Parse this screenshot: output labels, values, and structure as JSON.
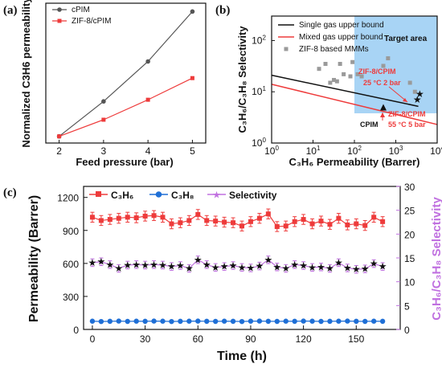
{
  "colors": {
    "cpim": "#555555",
    "zif": "#ee3b3b",
    "c3h6": "#ee3b3b",
    "c3h8": "#1f6fd6",
    "selectivity": "#c070e0",
    "target_area": "#a8d4f5",
    "mmm": "#9a9a9a",
    "single_bound": "#111111",
    "mixed_bound": "#ee3b3b"
  },
  "chart_data": [
    {
      "panel": "(a)",
      "type": "line",
      "xlabel": "Feed pressure (bar)",
      "ylabel": "Normalized C3H6 permeability",
      "xlim": [
        1.7,
        5.3
      ],
      "ylim": [
        0.8,
        5.0
      ],
      "xticks": [
        "2",
        "3",
        "4",
        "5"
      ],
      "x": [
        2,
        3,
        4,
        5
      ],
      "series": [
        {
          "name": "cPIM",
          "values": [
            1.0,
            2.05,
            3.25,
            4.75
          ]
        },
        {
          "name": "ZIF-8/cPIM",
          "values": [
            1.0,
            1.5,
            2.1,
            2.75
          ]
        }
      ],
      "legend_position": "top-left"
    },
    {
      "panel": "(b)",
      "type": "scatter",
      "xlabel": "C3H6 Permeability (Barrer)",
      "ylabel": "C3H6/C3H8 Selectivity",
      "xscale": "log",
      "yscale": "log",
      "xlim": [
        1,
        10000
      ],
      "ylim": [
        1,
        300
      ],
      "xticks": [
        "10^0",
        "10^1",
        "10^2",
        "10^3",
        "10^4"
      ],
      "yticks": [
        "10^0",
        "10^1",
        "10^2"
      ],
      "target_area_label": "Target area",
      "target_area_xmin": 100,
      "series": [
        {
          "name": "Single gas upper bound",
          "points": [
            [
              1,
              21
            ],
            [
              3500,
              5.2
            ]
          ]
        },
        {
          "name": "Mixed gas upper bound",
          "points": [
            [
              1,
              14
            ],
            [
              10000,
              2.3
            ]
          ]
        },
        {
          "name": "ZIF-8 based MMMs",
          "points": [
            [
              14,
              28
            ],
            [
              20,
              35
            ],
            [
              26,
              15
            ],
            [
              32,
              17
            ],
            [
              38,
              16
            ],
            [
              45,
              35
            ],
            [
              55,
              22
            ],
            [
              80,
              20
            ],
            [
              90,
              38
            ],
            [
              120,
              22
            ],
            [
              150,
              20
            ],
            [
              500,
              32
            ],
            [
              650,
              45
            ],
            [
              2200,
              15
            ],
            [
              2900,
              10
            ]
          ]
        }
      ],
      "annotations": [
        {
          "text": "CPIM",
          "point": [
            500,
            4.8
          ]
        },
        {
          "text": "ZIF-8/CPIM 25 °C 2 bar",
          "point": [
            3300,
            7
          ]
        },
        {
          "text": "ZIF-8/CPIM 55 °C 5 bar",
          "point": [
            3800,
            9
          ]
        }
      ],
      "legend_position": "top-left"
    },
    {
      "panel": "(c)",
      "type": "line",
      "xlabel": "Time (h)",
      "ylabel": "Permeability (Barrer)",
      "y2label": "C3H6/C3H8 Selectivity",
      "xlim": [
        -5,
        175
      ],
      "ylim": [
        0,
        1300
      ],
      "y2lim": [
        0,
        30
      ],
      "xticks": [
        0,
        30,
        60,
        90,
        120,
        150
      ],
      "yticks": [
        0,
        300,
        600,
        900,
        1200
      ],
      "y2ticks": [
        0,
        5,
        10,
        15,
        20,
        25,
        30
      ],
      "x": [
        0,
        5,
        10,
        15,
        20,
        25,
        30,
        35,
        40,
        45,
        50,
        55,
        60,
        65,
        70,
        75,
        80,
        85,
        90,
        95,
        100,
        105,
        110,
        115,
        120,
        125,
        130,
        135,
        140,
        145,
        150,
        155,
        160,
        165
      ],
      "series": [
        {
          "name": "C3H6",
          "axis": "left",
          "values": [
            1020,
            990,
            1000,
            1010,
            1020,
            1015,
            1030,
            1035,
            1020,
            960,
            970,
            990,
            1045,
            990,
            985,
            975,
            970,
            940,
            980,
            1010,
            1050,
            935,
            940,
            980,
            1000,
            960,
            985,
            955,
            1010,
            950,
            960,
            945,
            1020,
            980
          ],
          "error": 45
        },
        {
          "name": "C3H8",
          "axis": "left",
          "values": [
            75,
            72,
            74,
            76,
            73,
            75,
            74,
            76,
            75,
            72,
            74,
            75,
            76,
            74,
            73,
            75,
            74,
            72,
            75,
            76,
            74,
            73,
            75,
            74,
            76,
            75,
            73,
            74,
            75,
            76,
            74,
            73,
            75,
            74
          ],
          "error": 8
        },
        {
          "name": "Selectivity",
          "axis": "right",
          "values": [
            14.0,
            14.2,
            13.6,
            12.8,
            13.5,
            13.6,
            13.5,
            13.6,
            13.5,
            13.2,
            13.4,
            12.8,
            14.6,
            13.6,
            13.0,
            13.2,
            13.4,
            13.0,
            12.9,
            13.3,
            14.6,
            13.1,
            12.8,
            13.6,
            13.4,
            13.0,
            13.1,
            12.8,
            14.0,
            12.9,
            12.6,
            12.7,
            13.8,
            13.2
          ],
          "error": 0.8
        }
      ],
      "legend_position": "top"
    }
  ]
}
